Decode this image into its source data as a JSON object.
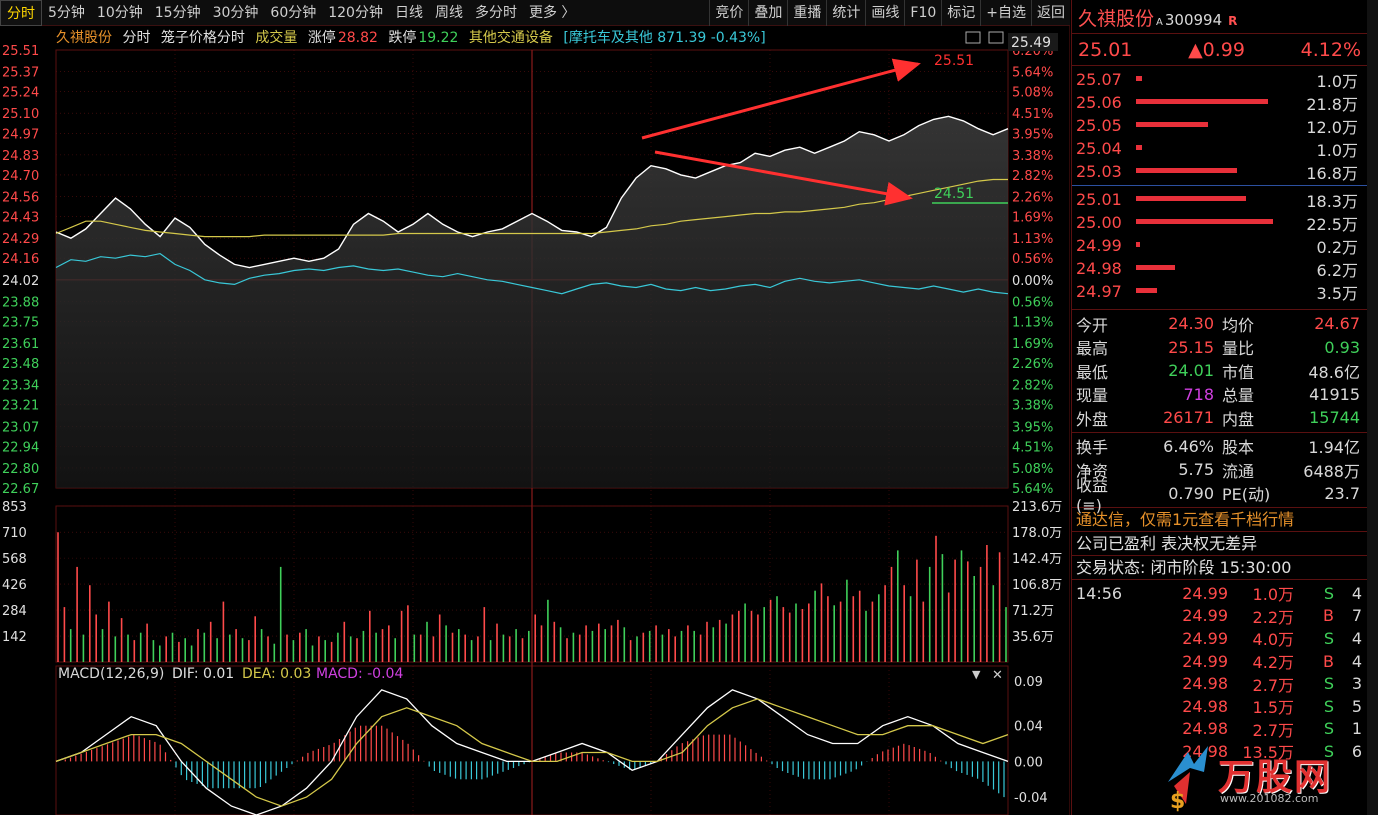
{
  "toolbar": {
    "tabs": [
      "分时",
      "5分钟",
      "10分钟",
      "15分钟",
      "30分钟",
      "60分钟",
      "120分钟",
      "日线",
      "周线",
      "多分时",
      "更多 〉"
    ],
    "tools": [
      "竞价",
      "叠加",
      "重播",
      "统计",
      "画线",
      "F10",
      "标记",
      "+自选",
      "返回"
    ]
  },
  "info": {
    "name": "久祺股份",
    "mode": "分时",
    "series": "笼子价格分时",
    "volume_label": "成交量",
    "limit_up_label": "涨停",
    "limit_up": "28.82",
    "limit_down_label": "跌停",
    "limit_down": "19.22",
    "sector": "其他交通设备",
    "index_info": "[摩托车及其他 871.39 -0.43%]"
  },
  "chart_labels": {
    "current_price_tag": "25.49",
    "annotation_high": "25.51",
    "annotation_low": "24.51",
    "price_axis": [
      "25.51",
      "25.37",
      "25.24",
      "25.10",
      "24.97",
      "24.83",
      "24.70",
      "24.56",
      "24.43",
      "24.29",
      "24.16",
      "24.02",
      "23.88",
      "23.75",
      "23.61",
      "23.48",
      "23.34",
      "23.21",
      "23.07",
      "22.94",
      "22.80",
      "22.67"
    ],
    "pct_axis": [
      "6.20%",
      "5.64%",
      "5.08%",
      "4.51%",
      "3.95%",
      "3.38%",
      "2.82%",
      "2.26%",
      "1.69%",
      "1.13%",
      "0.56%",
      "0.00%",
      "0.56%",
      "1.13%",
      "1.69%",
      "2.26%",
      "2.82%",
      "3.38%",
      "3.95%",
      "4.51%",
      "5.08%",
      "5.64%"
    ],
    "vol_axis_left": [
      "853",
      "710",
      "568",
      "426",
      "284",
      "142"
    ],
    "vol_axis_right": [
      "213.6万",
      "178.0万",
      "142.4万",
      "106.8万",
      "71.2万",
      "35.6万"
    ],
    "macd_header": "MACD(12,26,9)",
    "dif_label": "DIF: 0.01",
    "dea_label": "DEA: 0.03",
    "macd_label": "MACD: -0.04",
    "macd_axis": [
      "0.09",
      "0.04",
      "0.00",
      "-0.04"
    ]
  },
  "colors": {
    "price_line": "#ffffff",
    "avg_line": "#d4c84a",
    "index_line": "#39c8d8",
    "grid": "#5a0f0f",
    "up": "#ff4a4a",
    "down": "#3fd05a"
  },
  "stock": {
    "name": "久祺股份",
    "badge": "A",
    "code": "300994",
    "mark": "R",
    "price": "25.01",
    "change": "▲0.99",
    "change_pct": "4.12%"
  },
  "asks": [
    {
      "price": "25.07",
      "vol": "1.0万",
      "ratio": 0.04
    },
    {
      "price": "25.06",
      "vol": "21.8万",
      "ratio": 0.88
    },
    {
      "price": "25.05",
      "vol": "12.0万",
      "ratio": 0.48
    },
    {
      "price": "25.04",
      "vol": "1.0万",
      "ratio": 0.04
    },
    {
      "price": "25.03",
      "vol": "16.8万",
      "ratio": 0.67
    }
  ],
  "bids": [
    {
      "price": "25.01",
      "vol": "18.3万",
      "ratio": 0.73
    },
    {
      "price": "25.00",
      "vol": "22.5万",
      "ratio": 0.91
    },
    {
      "price": "24.99",
      "vol": "0.2万",
      "ratio": 0.02
    },
    {
      "price": "24.98",
      "vol": "6.2万",
      "ratio": 0.26
    },
    {
      "price": "24.97",
      "vol": "3.5万",
      "ratio": 0.14
    }
  ],
  "stats1": [
    {
      "k": "今开",
      "v": "24.30",
      "vc": "#ff4a4a",
      "k2": "均价",
      "v2": "24.67",
      "v2c": "#ff4a4a"
    },
    {
      "k": "最高",
      "v": "25.15",
      "vc": "#ff4a4a",
      "k2": "量比",
      "v2": "0.93",
      "v2c": "#3fd05a"
    },
    {
      "k": "最低",
      "v": "24.01",
      "vc": "#3fd05a",
      "k2": "市值",
      "v2": "48.6亿",
      "v2c": "#d8d8d8"
    },
    {
      "k": "现量",
      "v": "718",
      "vc": "#d040e0",
      "k2": "总量",
      "v2": "41915",
      "v2c": "#d8d8d8"
    },
    {
      "k": "外盘",
      "v": "26171",
      "vc": "#ff4a4a",
      "k2": "内盘",
      "v2": "15744",
      "v2c": "#3fd05a"
    }
  ],
  "stats2": [
    {
      "k": "换手",
      "v": "6.46%",
      "vc": "#d8d8d8",
      "k2": "股本",
      "v2": "1.94亿",
      "v2c": "#d8d8d8"
    },
    {
      "k": "净资",
      "v": "5.75",
      "vc": "#d8d8d8",
      "k2": "流通",
      "v2": "6488万",
      "v2c": "#d8d8d8"
    },
    {
      "k": "收益(≡)",
      "v": "0.790",
      "vc": "#d8d8d8",
      "k2": "PE(动)",
      "v2": "23.7",
      "v2c": "#d8d8d8"
    }
  ],
  "messages": {
    "promo": "通达信，仅需1元查看千档行情",
    "profit": "公司已盈利 表决权无差异",
    "status": "交易状态: 闭市阶段 15:30:00"
  },
  "trades": [
    {
      "time": "14:56",
      "price": "24.99",
      "vol": "1.0万",
      "bs": "S",
      "n": "4"
    },
    {
      "time": "",
      "price": "24.99",
      "vol": "2.2万",
      "bs": "B",
      "n": "7"
    },
    {
      "time": "",
      "price": "24.99",
      "vol": "4.0万",
      "bs": "S",
      "n": "4"
    },
    {
      "time": "",
      "price": "24.99",
      "vol": "4.2万",
      "bs": "B",
      "n": "4"
    },
    {
      "time": "",
      "price": "24.98",
      "vol": "2.7万",
      "bs": "S",
      "n": "3"
    },
    {
      "time": "",
      "price": "24.98",
      "vol": "1.5万",
      "bs": "S",
      "n": "5"
    },
    {
      "time": "",
      "price": "24.98",
      "vol": "2.7万",
      "bs": "S",
      "n": "1"
    },
    {
      "time": "",
      "price": "24.98",
      "vol": "13.5万",
      "bs": "S",
      "n": "6"
    }
  ],
  "watermark": {
    "text": "万股网",
    "url": "www.201082.com"
  },
  "chart_data": {
    "type": "line",
    "prev_close": 24.02,
    "ylim": [
      22.67,
      25.51
    ],
    "series": [
      {
        "name": "",
        "values": [
          24.33,
          24.29,
          24.35,
          24.45,
          24.55,
          24.48,
          24.38,
          24.3,
          24.42,
          24.36,
          24.25,
          24.18,
          24.12,
          24.1,
          24.12,
          24.14,
          24.16,
          24.14,
          24.16,
          24.22,
          24.38,
          24.45,
          24.4,
          24.33,
          24.38,
          24.45,
          24.38,
          24.33,
          24.3,
          24.33,
          24.35,
          24.4,
          24.45,
          24.4,
          24.34,
          24.33,
          24.3,
          24.36,
          24.55,
          24.68,
          24.76,
          24.74,
          24.7,
          24.68,
          24.72,
          24.76,
          24.78,
          24.84,
          24.82,
          24.86,
          24.88,
          24.84,
          24.88,
          24.92,
          24.98,
          24.96,
          24.92,
          24.96,
          25.02,
          25.06,
          25.08,
          25.05,
          25.0,
          24.96,
          25.0
        ]
      },
      {
        "name": "",
        "values": [
          24.32,
          24.36,
          24.4,
          24.4,
          24.38,
          24.36,
          24.34,
          24.33,
          24.32,
          24.31,
          24.3,
          24.3,
          24.3,
          24.3,
          24.31,
          24.31,
          24.31,
          24.31,
          24.31,
          24.31,
          24.31,
          24.31,
          24.31,
          24.32,
          24.32,
          24.32,
          24.32,
          24.32,
          24.32,
          24.32,
          24.32,
          24.32,
          24.32,
          24.32,
          24.32,
          24.32,
          24.32,
          24.33,
          24.34,
          24.35,
          24.37,
          24.38,
          24.4,
          24.41,
          24.42,
          24.43,
          24.44,
          24.45,
          24.45,
          24.46,
          24.46,
          24.47,
          24.48,
          24.49,
          24.51,
          24.52,
          24.54,
          24.56,
          24.58,
          24.6,
          24.62,
          24.64,
          24.66,
          24.67,
          24.67
        ]
      },
      {
        "name": "",
        "values": [
          24.1,
          24.15,
          24.14,
          24.17,
          24.16,
          24.18,
          24.17,
          24.19,
          24.12,
          24.08,
          24.02,
          24.0,
          23.99,
          24.03,
          24.05,
          24.06,
          24.08,
          24.09,
          24.08,
          24.1,
          24.11,
          24.09,
          24.08,
          24.09,
          24.07,
          24.05,
          24.04,
          24.06,
          24.04,
          24.02,
          24.01,
          23.99,
          23.97,
          23.95,
          23.93,
          23.96,
          23.99,
          24.0,
          23.98,
          23.97,
          23.99,
          23.96,
          23.95,
          23.97,
          23.95,
          23.96,
          23.98,
          23.99,
          23.97,
          24.01,
          24.03,
          24.01,
          24.0,
          24.01,
          24.02,
          24.0,
          23.98,
          23.97,
          23.96,
          23.98,
          23.96,
          23.94,
          23.96,
          23.94,
          23.93
        ]
      }
    ],
    "macd": {
      "ylim": [
        -0.06,
        0.09
      ],
      "dif": [
        0.0,
        0.01,
        0.03,
        0.05,
        0.04,
        0.0,
        -0.03,
        -0.05,
        -0.06,
        -0.05,
        -0.03,
        0.0,
        0.05,
        0.08,
        0.07,
        0.04,
        0.02,
        0.01,
        0.0,
        0.0,
        0.01,
        0.02,
        0.01,
        -0.01,
        0.0,
        0.03,
        0.06,
        0.08,
        0.07,
        0.05,
        0.03,
        0.02,
        0.02,
        0.04,
        0.05,
        0.04,
        0.02,
        0.01,
        0.0
      ],
      "dea": [
        0.0,
        0.01,
        0.02,
        0.03,
        0.03,
        0.02,
        0.0,
        -0.02,
        -0.04,
        -0.05,
        -0.04,
        -0.02,
        0.02,
        0.05,
        0.06,
        0.05,
        0.04,
        0.02,
        0.01,
        0.0,
        0.0,
        0.01,
        0.01,
        0.0,
        0.0,
        0.01,
        0.04,
        0.06,
        0.07,
        0.06,
        0.05,
        0.04,
        0.03,
        0.03,
        0.04,
        0.04,
        0.03,
        0.02,
        0.03
      ],
      "hist": [
        0.0,
        0.01,
        0.02,
        0.03,
        0.02,
        -0.02,
        -0.03,
        -0.03,
        -0.03,
        -0.01,
        0.01,
        0.02,
        0.04,
        0.04,
        0.02,
        -0.01,
        -0.02,
        -0.02,
        -0.01,
        0.0,
        0.01,
        0.01,
        0.0,
        -0.01,
        0.0,
        0.02,
        0.03,
        0.03,
        0.01,
        -0.01,
        -0.02,
        -0.02,
        -0.01,
        0.01,
        0.02,
        0.01,
        -0.01,
        -0.02,
        -0.04
      ]
    },
    "volume": {
      "ylim": [
        0,
        853
      ],
      "values": [
        710,
        300,
        180,
        520,
        150,
        420,
        260,
        180,
        330,
        140,
        240,
        150,
        120,
        160,
        210,
        120,
        90,
        140,
        160,
        110,
        130,
        90,
        180,
        160,
        220,
        130,
        330,
        150,
        180,
        130,
        120,
        250,
        180,
        140,
        100,
        520,
        150,
        120,
        160,
        180,
        90,
        140,
        120,
        110,
        160,
        220,
        140,
        130,
        170,
        280,
        160,
        180,
        200,
        130,
        280,
        310,
        150,
        150,
        220,
        140,
        260,
        200,
        160,
        180,
        150,
        120,
        140,
        300,
        120,
        210,
        150,
        140,
        180,
        130,
        170,
        260,
        200,
        340,
        220,
        190,
        130,
        160,
        150,
        200,
        170,
        210,
        180,
        200,
        230,
        190,
        120,
        140,
        160,
        170,
        200,
        150,
        180,
        140,
        170,
        200,
        170,
        150,
        220,
        190,
        230,
        210,
        260,
        280,
        320,
        280,
        260,
        300,
        340,
        360,
        300,
        270,
        320,
        290,
        320,
        390,
        430,
        360,
        310,
        330,
        450,
        360,
        390,
        280,
        330,
        370,
        420,
        520,
        610,
        420,
        360,
        560,
        330,
        520,
        690,
        590,
        380,
        560,
        610,
        550,
        470,
        520,
        640,
        420,
        600,
        300
      ],
      "up": [
        true,
        true,
        false,
        true,
        false,
        true,
        true,
        false,
        true,
        false,
        true,
        false,
        true,
        false,
        true,
        false,
        false,
        true,
        false,
        true,
        false,
        false,
        true,
        false,
        true,
        false,
        true,
        false,
        true,
        false,
        true,
        true,
        false,
        true,
        false,
        false,
        true,
        false,
        true,
        false,
        false,
        true,
        false,
        true,
        false,
        true,
        false,
        true,
        false,
        true,
        false,
        true,
        true,
        false,
        true,
        true,
        false,
        true,
        false,
        true,
        true,
        false,
        true,
        false,
        true,
        false,
        true,
        true,
        false,
        true,
        false,
        true,
        false,
        true,
        false,
        true,
        true,
        false,
        true,
        false,
        true,
        false,
        true,
        true,
        false,
        true,
        false,
        true,
        true,
        false,
        true,
        false,
        true,
        false,
        true,
        false,
        true,
        true,
        false,
        true,
        false,
        true,
        true,
        false,
        true,
        false,
        true,
        true,
        false,
        true,
        true,
        false,
        true,
        false,
        true,
        true,
        false,
        true,
        true,
        false,
        true,
        true,
        false,
        true,
        false,
        true,
        true,
        false,
        true,
        false,
        true,
        true,
        false,
        true,
        false,
        true,
        true,
        false,
        true,
        false,
        true,
        true,
        false,
        true,
        false,
        true,
        true,
        false,
        true,
        false
      ]
    }
  }
}
